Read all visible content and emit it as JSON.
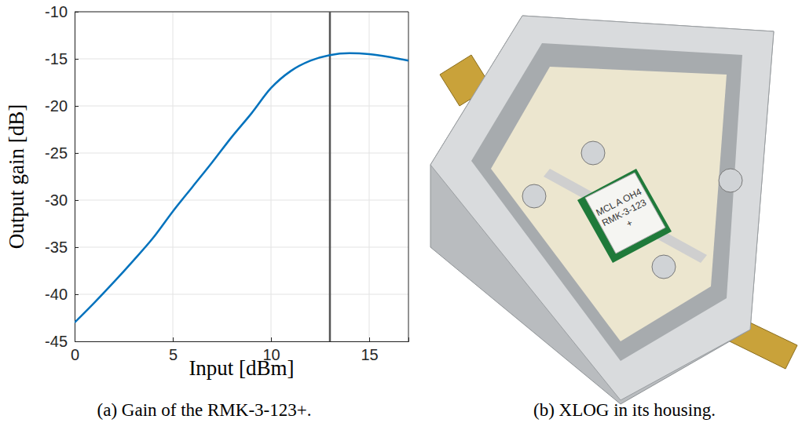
{
  "chart_data": {
    "type": "line",
    "x": [
      0,
      1,
      2,
      3,
      4,
      5,
      6,
      7,
      8,
      9,
      10,
      11,
      12,
      13,
      14,
      15,
      16,
      17
    ],
    "values": [
      -43,
      -40.9,
      -38.7,
      -36.4,
      -34,
      -31.2,
      -28.6,
      -26,
      -23.3,
      -20.8,
      -18.1,
      -16.3,
      -15.2,
      -14.6,
      -14.4,
      -14.5,
      -14.8,
      -15.2
    ],
    "color": "#0072bd",
    "xlim": [
      0,
      17
    ],
    "xticks": [
      0,
      5,
      10,
      15
    ],
    "ylim": [
      -45,
      -10
    ],
    "yticks": [
      -45,
      -40,
      -35,
      -30,
      -25,
      -20,
      -15,
      -10
    ],
    "x_label": "Input [dBm]",
    "y_label": "Output gain [dB]",
    "vline": 13,
    "grid": true,
    "caption": "(a) Gain of the RMK-3-123+."
  },
  "photo": {
    "caption": "(b) XLOG in its housing.",
    "chip_label": [
      "MCL A OH4",
      "RMK-3-123",
      "+"
    ]
  }
}
